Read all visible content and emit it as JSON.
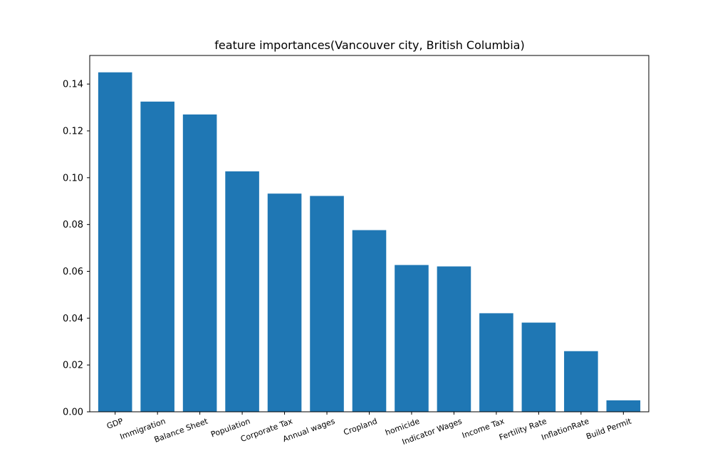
{
  "chart_data": {
    "type": "bar",
    "title": "feature importances(Vancouver city, British Columbia)",
    "xlabel": "",
    "ylabel": "",
    "categories": [
      "GDP",
      "Immigration",
      "Balance Sheet",
      "Population",
      "Corporate Tax",
      "Annual wages",
      "Cropland",
      "homicide",
      "Indicator Wages",
      "Income Tax",
      "Fertility Rate",
      "InflationRate",
      "Build Permit"
    ],
    "values": [
      0.145,
      0.1325,
      0.127,
      0.1027,
      0.0932,
      0.0922,
      0.0776,
      0.0627,
      0.0621,
      0.0421,
      0.0381,
      0.0259,
      0.0049
    ],
    "ylim": [
      0,
      0.1522
    ],
    "yticks": [
      "0.00",
      "0.02",
      "0.04",
      "0.06",
      "0.08",
      "0.10",
      "0.12",
      "0.14"
    ],
    "bar_color": "#1f77b4",
    "grid": false,
    "legend": "none"
  }
}
